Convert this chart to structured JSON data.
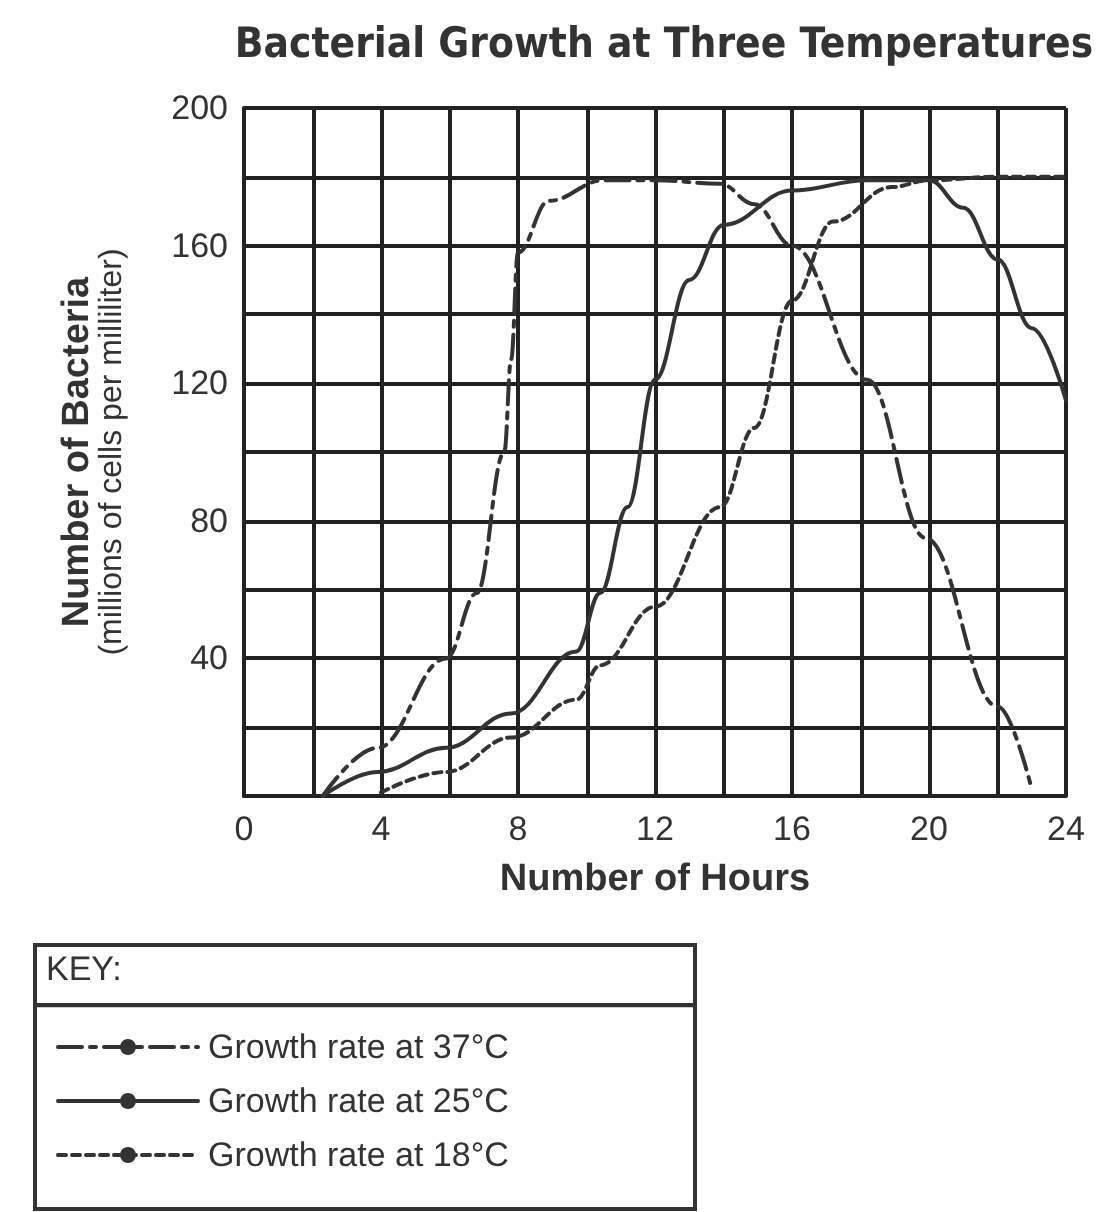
{
  "chart_data": {
    "type": "line",
    "title": "Bacterial Growth at Three Temperatures",
    "xlabel": "Number of Hours",
    "ylabel": "Number of Bacteria\n(millions of cells per milliliter)",
    "legend_title": "KEY:",
    "legend": "bottom left",
    "grid": true,
    "marker": "none",
    "xlim": [
      0,
      24
    ],
    "xticks": [
      0,
      {
        "value": 2,
        "label": null
      },
      4,
      {
        "value": 6,
        "label": null
      },
      8,
      {
        "value": 10,
        "label": null
      },
      12,
      {
        "value": 14,
        "label": null
      },
      16,
      {
        "value": 18,
        "label": null
      },
      20,
      {
        "value": 22,
        "label": null
      },
      24
    ],
    "ylim": [
      0,
      200
    ],
    "yticks": [
      {
        "value": 0,
        "label": null
      },
      {
        "value": 20,
        "label": null
      },
      40,
      {
        "value": 60,
        "label": null
      },
      80,
      {
        "value": 100,
        "label": null
      },
      120,
      {
        "value": 140,
        "label": null
      },
      160,
      {
        "value": 180,
        "label": null
      },
      200
    ],
    "series": [
      {
        "name": "Growth rate at 37°C",
        "color": "#333333",
        "line_style": "dashed",
        "x": [
          2.3,
          3.9,
          5.9,
          6.8,
          7.6,
          7.8,
          8,
          8.9,
          10.5,
          12,
          13.9,
          14.9,
          16,
          18.2,
          19.9,
          22,
          23
        ],
        "values": [
          0,
          14,
          40,
          59,
          100,
          127,
          158,
          173,
          179,
          179,
          178,
          172,
          160,
          121,
          75,
          26,
          2
        ]
      },
      {
        "name": "Growth rate at 25°C",
        "color": "#333333",
        "line_style": "solid",
        "x": [
          2.3,
          3.9,
          5.9,
          7.8,
          9.7,
          10.4,
          11.2,
          12,
          13,
          14,
          16,
          18.2,
          20,
          21,
          22,
          23,
          24
        ],
        "values": [
          0,
          7,
          14,
          24,
          42,
          59,
          84,
          121,
          150,
          166,
          176,
          179,
          179,
          171,
          156,
          136,
          115
        ]
      },
      {
        "name": "Growth rate at 18°C",
        "color": "#333333",
        "line_style": "dotted",
        "x": [
          4,
          5.9,
          7.8,
          9.7,
          10.4,
          12,
          13.9,
          14.9,
          16,
          17.2,
          18.9,
          20,
          22,
          24
        ],
        "values": [
          1,
          7,
          17,
          28,
          38,
          55,
          84,
          107,
          144,
          167,
          177,
          179,
          180,
          180
        ]
      }
    ]
  }
}
